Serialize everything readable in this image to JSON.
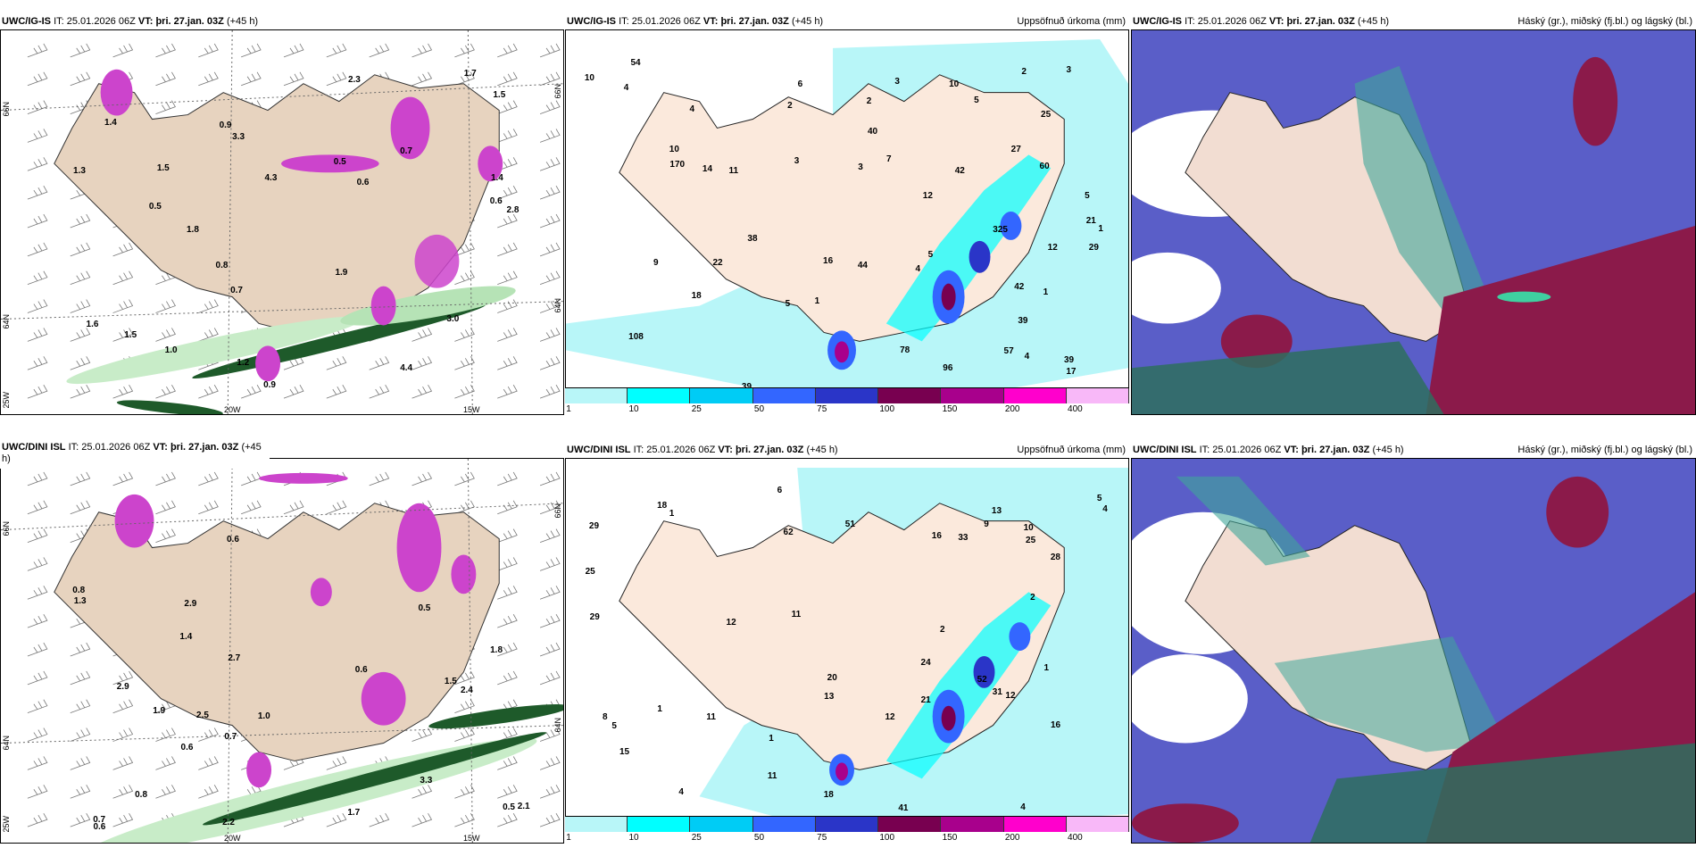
{
  "panels": {
    "top_left": {
      "model": "UWC/IG-IS",
      "it_label": "IT:",
      "it_value": "25.01.2026 06Z",
      "vt_label": "VT:",
      "vt_value": "þri. 27.jan. 03Z",
      "lead": "(+45 h)",
      "axis_labels": {
        "lat_top": "66N",
        "lat_bottom": "64N",
        "lon_corner": "25W",
        "lon_mid": "20W",
        "lon_right": "15W",
        "lat_top_right": "66N",
        "lat_bottom_right": "64N"
      },
      "values": [
        "1.5",
        "0.7",
        "0.8",
        "1.7",
        "1.4",
        "1.5",
        "0.6",
        "1.9",
        "2.8",
        "0.6",
        "0.5",
        "1.4",
        "0.9",
        "1.0",
        "4.3",
        "3.3",
        "1.3",
        "3.0",
        "1.6",
        "1.5",
        "0.9",
        "0.7",
        "1.8",
        "0.5",
        "4.4",
        "1.2",
        "2.3"
      ]
    },
    "top_middle": {
      "model": "UWC/IG-IS",
      "it_label": "IT:",
      "it_value": "25.01.2026 06Z",
      "vt_label": "VT:",
      "vt_value": "þri. 27.jan. 03Z",
      "lead": "(+45 h)",
      "product": "Uppsöfnuð úrkoma (mm)",
      "values": [
        "4",
        "2",
        "10",
        "1",
        "1",
        "1",
        "16",
        "5",
        "12",
        "17",
        "10",
        "5",
        "3",
        "7",
        "10",
        "27",
        "38",
        "18",
        "39",
        "42",
        "42",
        "14",
        "54",
        "60",
        "108",
        "57",
        "96",
        "39",
        "170",
        "78",
        "325",
        "44",
        "21",
        "11",
        "4",
        "4",
        "5",
        "40",
        "39",
        "22",
        "25",
        "29",
        "5",
        "3",
        "2",
        "3",
        "2",
        "3",
        "4",
        "9",
        "12",
        "6"
      ]
    },
    "top_right": {
      "model": "UWC/IG-IS",
      "it_label": "IT:",
      "it_value": "25.01.2026 06Z",
      "vt_label": "VT:",
      "vt_value": "þri. 27.jan. 03Z",
      "lead": "(+45 h)",
      "product": "Háský (gr.), miðský (fj.bl.) og lágský (bl.)"
    },
    "bottom_left": {
      "model": "UWC/DINI ISL",
      "it_label": "IT:",
      "it_value": "25.01.2026 06Z",
      "vt_label": "VT:",
      "vt_value": "þri. 27.jan. 03Z",
      "lead_a": "(+45",
      "lead_b": "h)",
      "axis_labels": {
        "lat_top": "66N",
        "lat_bottom": "64N",
        "lon_corner": "25W",
        "lon_mid": "20W",
        "lon_right": "15W",
        "lat_top_right": "66N",
        "lat_bottom_right": "64N"
      },
      "values": [
        "1.0",
        "0.7",
        "0.5",
        "0.6",
        "2.5",
        "1.3",
        "1.7",
        "1.5",
        "0.8",
        "2.4",
        "0.6",
        "2.9",
        "2.2",
        "2.9",
        "0.6",
        "2.7",
        "3.3",
        "1.8",
        "1.4",
        "0.5",
        "0.7",
        "0.6",
        "0.8",
        "1.9",
        "2.1"
      ]
    },
    "bottom_middle": {
      "model": "UWC/DINI ISL",
      "it_label": "IT:",
      "it_value": "25.01.2026 06Z",
      "vt_label": "VT:",
      "vt_value": "þri. 27.jan. 03Z",
      "lead": "(+45 h)",
      "product": "Uppsöfnuð úrkoma (mm)",
      "values": [
        "1",
        "1",
        "1",
        "2",
        "4",
        "1",
        "2",
        "16",
        "31",
        "29",
        "62",
        "52",
        "51",
        "24",
        "41",
        "21",
        "25",
        "16",
        "13",
        "12",
        "12",
        "11",
        "6",
        "9",
        "11",
        "8",
        "20",
        "18",
        "18",
        "33",
        "28",
        "29",
        "25",
        "5",
        "4",
        "4",
        "5",
        "11",
        "15",
        "13",
        "12",
        "10"
      ]
    },
    "bottom_right": {
      "model": "UWC/DINI ISL",
      "it_label": "IT:",
      "it_value": "25.01.2026 06Z",
      "vt_label": "VT:",
      "vt_value": "þri. 27.jan. 03Z",
      "lead": "(+45 h)",
      "product": "Háský (gr.), miðský (fj.bl.) og lágský (bl.)"
    }
  },
  "colors": {
    "land": "#f5e6d3",
    "land_left": "#e7d3bf",
    "sea": "#ffffff",
    "cloud_high": "#5a5ec8",
    "cloud_mid": "#3fa79a",
    "cloud_low": "#8b1a4a",
    "green_light": "#c8ecc8",
    "green_dark": "#1e5a2a",
    "pink": "#cc44cc"
  },
  "chart_data": [
    {
      "type": "heatmap",
      "title": "UWC/IG-IS IT: 25.01.2026 06Z VT: þri. 27.jan. 03Z (+45 h)",
      "product": "Uppsöfnuð úrkoma (mm)",
      "legend": {
        "placement": "bottom",
        "ticks": [
          "1",
          "10",
          "25",
          "50",
          "75",
          "100",
          "150",
          "200",
          "400"
        ],
        "colors": [
          "#b8f6f8",
          "#00ffff",
          "#00ccf5",
          "#3366ff",
          "#2a35c8",
          "#780050",
          "#a8008c",
          "#ff00cc",
          "#f8b8f8"
        ]
      }
    },
    {
      "type": "heatmap",
      "title": "UWC/DINI ISL IT: 25.01.2026 06Z VT: þri. 27.jan. 03Z (+45 h)",
      "product": "Uppsöfnuð úrkoma (mm)",
      "legend": {
        "placement": "bottom",
        "ticks": [
          "1",
          "10",
          "25",
          "50",
          "75",
          "100",
          "150",
          "200",
          "400"
        ],
        "colors": [
          "#b8f6f8",
          "#00ffff",
          "#00ccf5",
          "#3366ff",
          "#2a35c8",
          "#780050",
          "#a8008c",
          "#ff00cc",
          "#f8b8f8"
        ]
      }
    }
  ]
}
